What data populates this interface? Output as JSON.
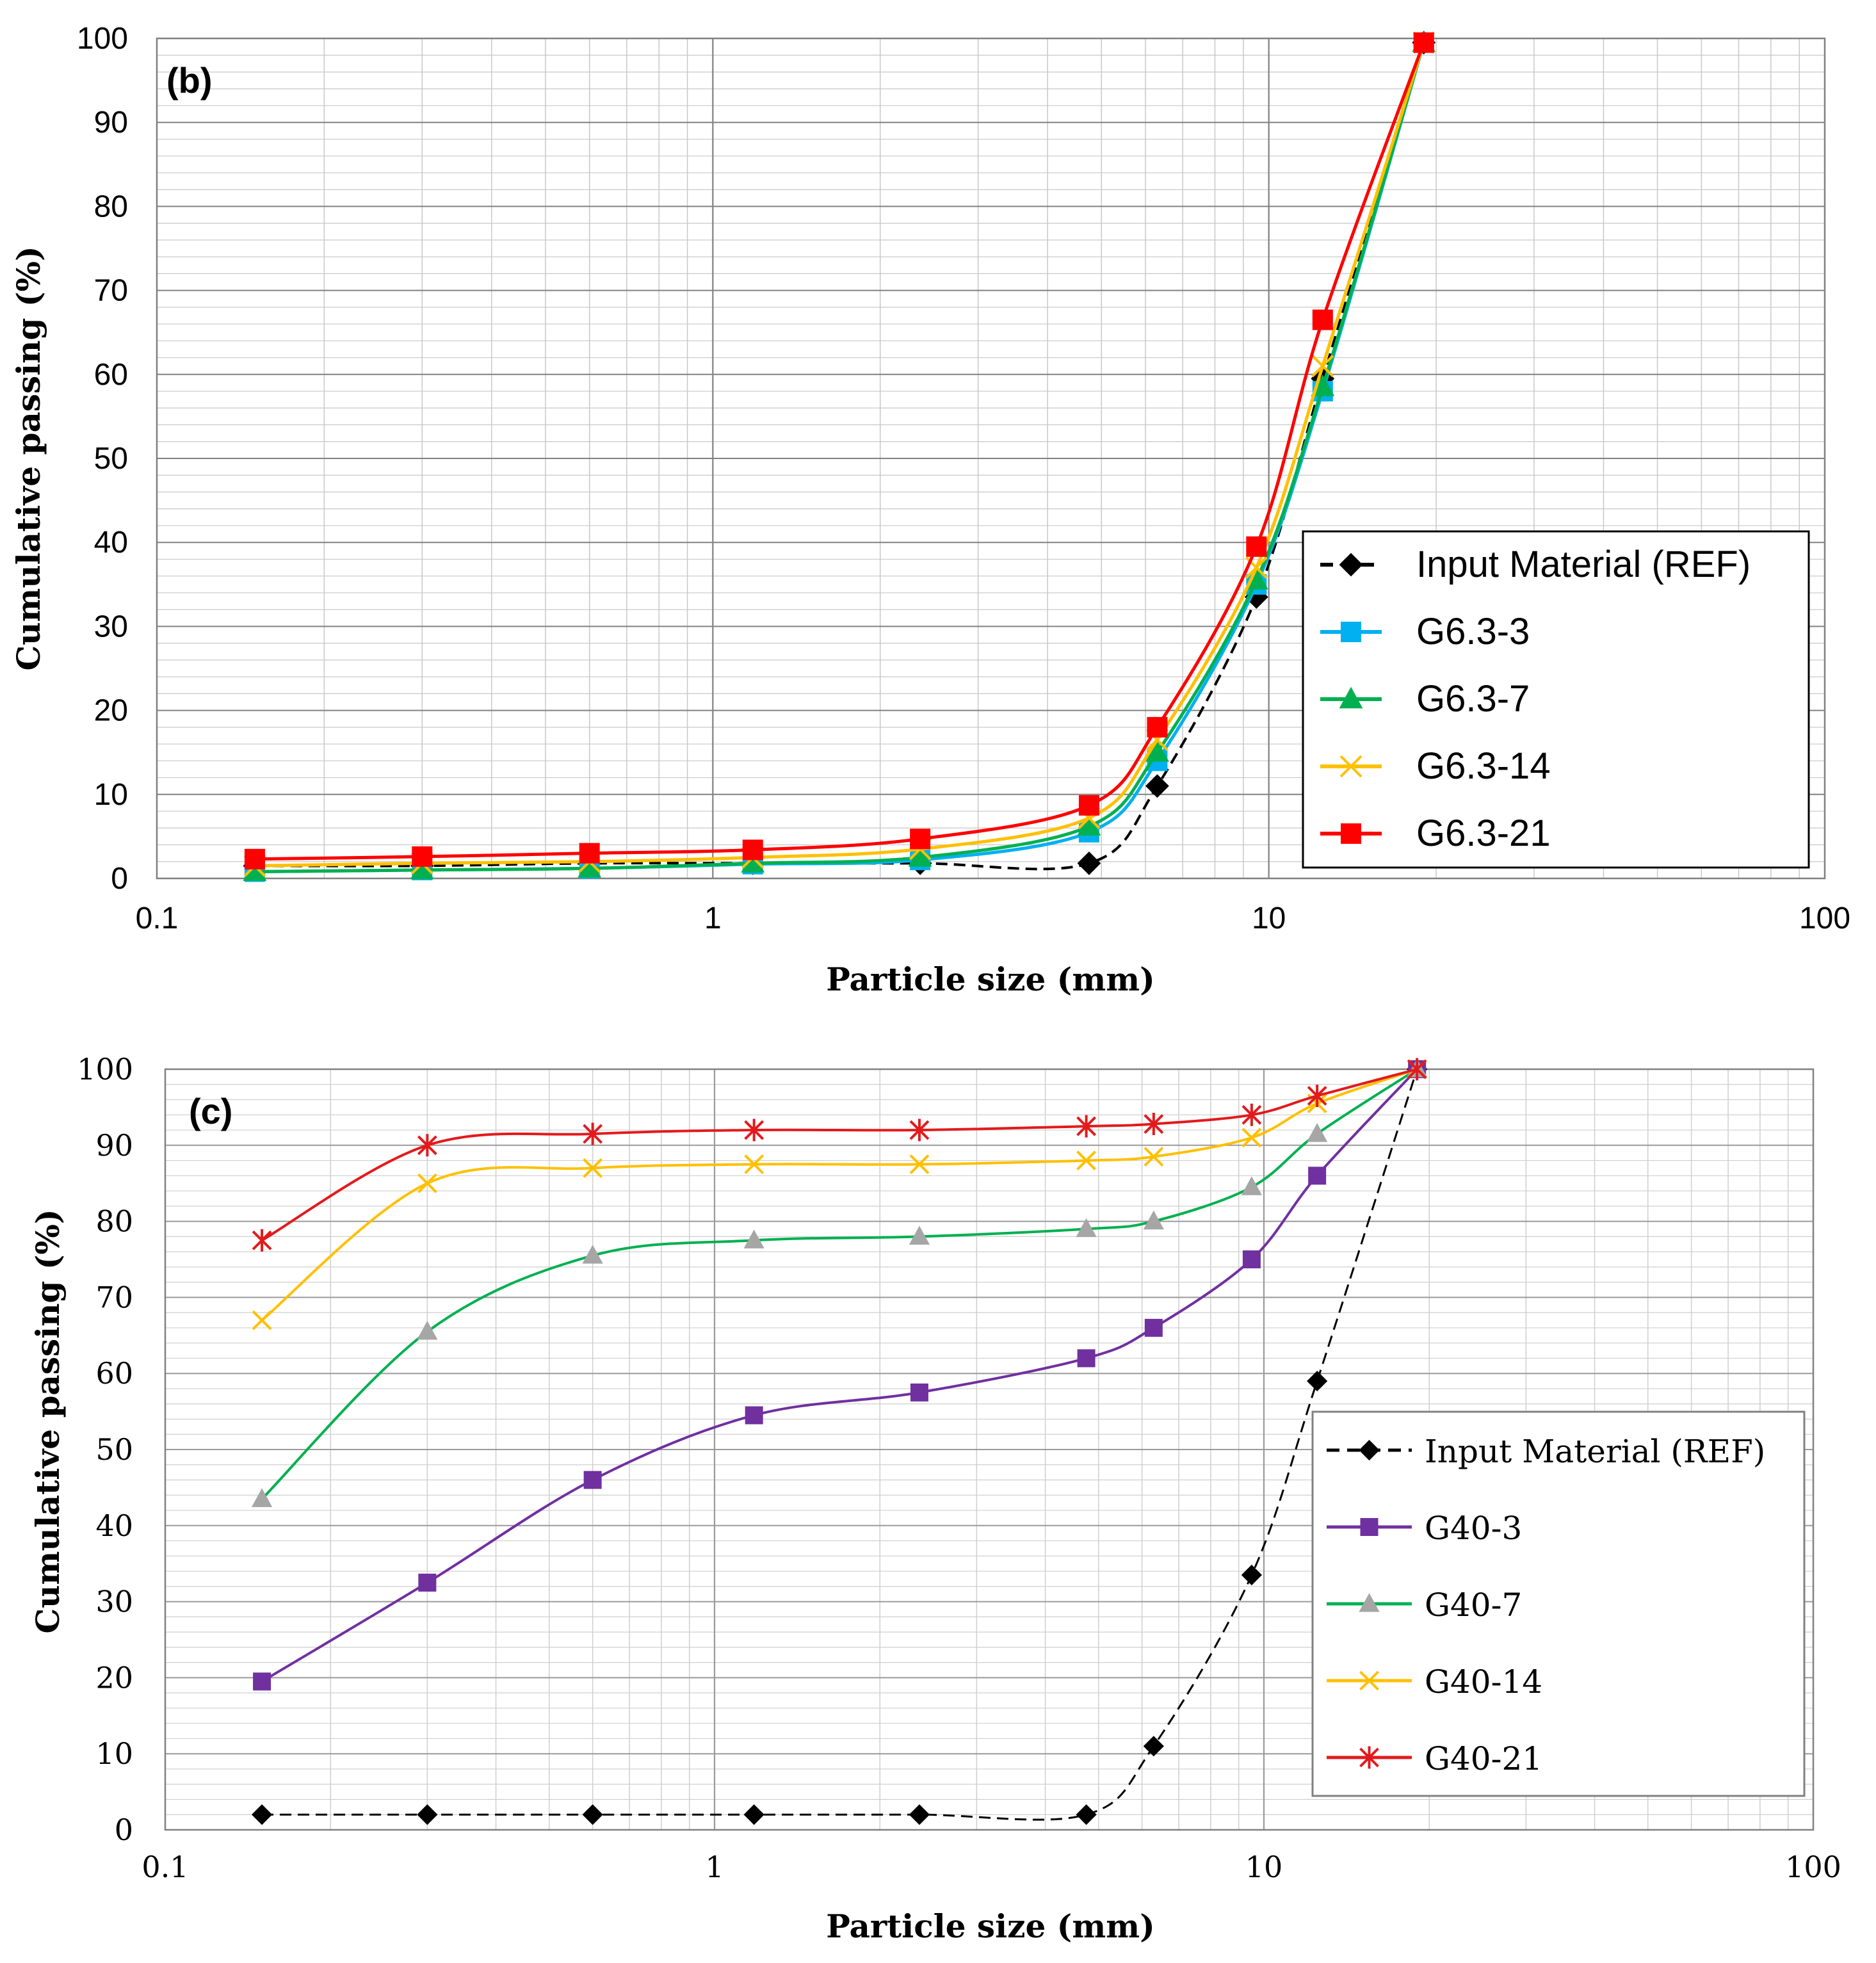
{
  "chart_data": [
    {
      "panel_label": "(b)",
      "type": "line",
      "x_scale": "log",
      "xlabel": "Particle size (mm)",
      "ylabel": "Cumulative passing (%)",
      "xlim": [
        0.1,
        100
      ],
      "ylim": [
        0,
        100
      ],
      "x_tick_labels": [
        "0.1",
        "1",
        "10",
        "100"
      ],
      "y_tick_labels": [
        "0",
        "10",
        "20",
        "30",
        "40",
        "50",
        "60",
        "70",
        "80",
        "90",
        "100"
      ],
      "grid": true,
      "legend_position": "lower-right",
      "x": [
        0.15,
        0.3,
        0.6,
        1.18,
        2.36,
        4.75,
        6.3,
        9.5,
        12.5,
        19
      ],
      "series": [
        {
          "name": "Input Material (REF)",
          "color": "#000000",
          "marker": "diamond",
          "dashed": true,
          "values": [
            1.5,
            1.5,
            1.8,
            1.8,
            1.8,
            1.8,
            11,
            33.5,
            59.5,
            99.5
          ]
        },
        {
          "name": "G6.3-3",
          "color": "#00B0F0",
          "marker": "square",
          "dashed": false,
          "values": [
            0.8,
            1.0,
            1.2,
            1.7,
            2.2,
            5.5,
            14,
            35,
            58,
            99.5
          ]
        },
        {
          "name": "G6.3-7",
          "color": "#00B050",
          "marker": "triangle",
          "dashed": false,
          "values": [
            0.8,
            1.0,
            1.2,
            1.8,
            2.5,
            6.2,
            15,
            35.5,
            58.5,
            99.5
          ]
        },
        {
          "name": "G6.3-14",
          "color": "#FFC000",
          "marker": "x",
          "dashed": false,
          "values": [
            1.5,
            1.8,
            2.0,
            2.5,
            3.5,
            7.2,
            16.5,
            37,
            61,
            99.5
          ]
        },
        {
          "name": "G6.3-21",
          "color": "#FF0000",
          "marker": "square",
          "dashed": false,
          "values": [
            2.3,
            2.6,
            3.0,
            3.4,
            4.7,
            8.7,
            18,
            39.5,
            66.5,
            99.5
          ]
        }
      ]
    },
    {
      "panel_label": "(c)",
      "type": "line",
      "x_scale": "log",
      "xlabel": "Particle size (mm)",
      "ylabel": "Cumulative passing (%)",
      "xlim": [
        0.1,
        100
      ],
      "ylim": [
        0,
        100
      ],
      "x_tick_labels": [
        "0.1",
        "1",
        "10",
        "100"
      ],
      "y_tick_labels": [
        "0",
        "10",
        "20",
        "30",
        "40",
        "50",
        "60",
        "70",
        "80",
        "90",
        "100"
      ],
      "grid": true,
      "legend_position": "lower-right",
      "x": [
        0.15,
        0.3,
        0.6,
        1.18,
        2.36,
        4.75,
        6.3,
        9.5,
        12.5,
        19
      ],
      "series": [
        {
          "name": "Input Material (REF)",
          "color": "#000000",
          "marker": "diamond",
          "dashed": true,
          "values": [
            2,
            2,
            2,
            2,
            2,
            2,
            11,
            33.5,
            59,
            100
          ]
        },
        {
          "name": "G40-3",
          "color": "#7030A0",
          "marker": "square",
          "dashed": false,
          "values": [
            19.5,
            32.5,
            46,
            54.5,
            57.5,
            62,
            66,
            75,
            86,
            100
          ]
        },
        {
          "name": "G40-7",
          "color": "#00B050",
          "marker": "triangle-gray",
          "dashed": false,
          "values": [
            43.5,
            65.5,
            75.5,
            77.5,
            78,
            79,
            80,
            84.5,
            91.5,
            100
          ]
        },
        {
          "name": "G40-14",
          "color": "#FFC000",
          "marker": "x",
          "dashed": false,
          "values": [
            67,
            85,
            87,
            87.5,
            87.5,
            88,
            88.5,
            91,
            95.5,
            100
          ]
        },
        {
          "name": "G40-21",
          "color": "#E31A1C",
          "marker": "star",
          "dashed": false,
          "values": [
            77.5,
            90,
            91.5,
            92,
            92,
            92.5,
            92.8,
            94,
            96.5,
            100
          ]
        }
      ]
    }
  ]
}
